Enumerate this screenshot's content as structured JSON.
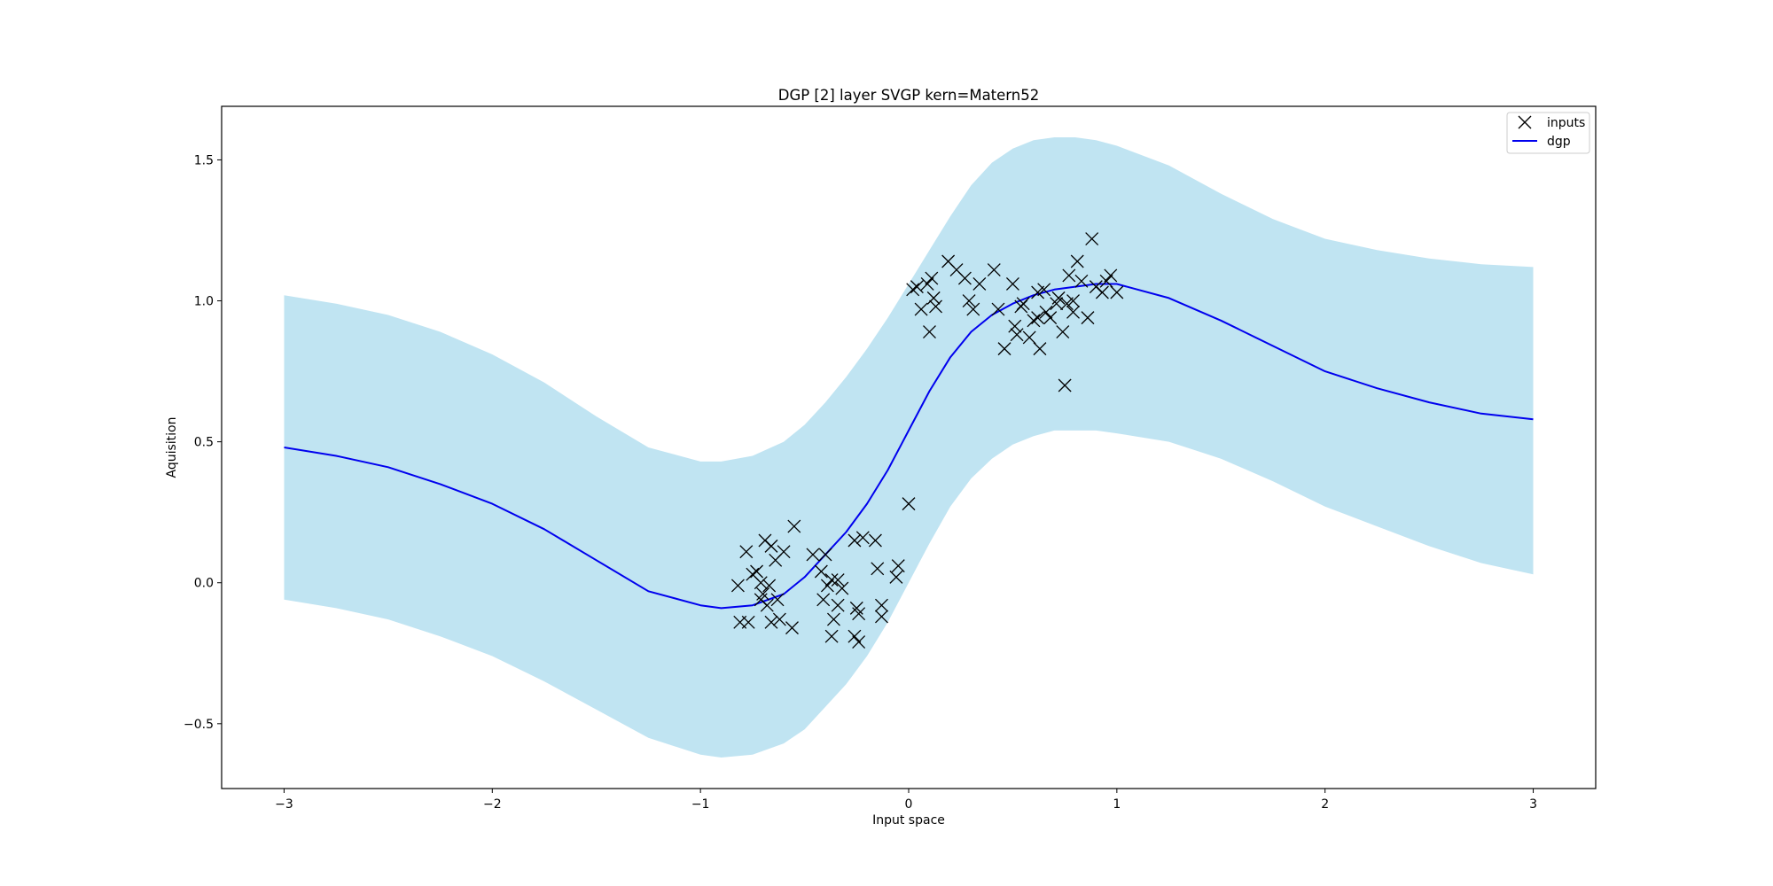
{
  "chart_data": {
    "type": "line",
    "title": "DGP [2] layer SVGP kern=Matern52",
    "xlabel": "Input space",
    "ylabel": "Aquisition",
    "xlim": [
      -3.3,
      3.3
    ],
    "ylim": [
      -0.73,
      1.69
    ],
    "xticks": [
      -3,
      -2,
      -1,
      0,
      1,
      2,
      3
    ],
    "yticks": [
      -0.5,
      0.0,
      0.5,
      1.0,
      1.5
    ],
    "xtick_labels": [
      "−3",
      "−2",
      "−1",
      "0",
      "1",
      "2",
      "3"
    ],
    "ytick_labels": [
      "−0.5",
      "0.0",
      "0.5",
      "1.0",
      "1.5"
    ],
    "grid": false,
    "legend": {
      "position": "top-right",
      "entries": [
        {
          "label": "inputs",
          "marker": "x",
          "color": "#000000"
        },
        {
          "label": "dgp",
          "marker": "line",
          "color": "#0000ee"
        }
      ]
    },
    "colors": {
      "mean": "#0000ee",
      "band": "#c0e4f2",
      "markers": "#000000"
    },
    "series": [
      {
        "name": "dgp",
        "kind": "line",
        "x": [
          -3.0,
          -2.75,
          -2.5,
          -2.25,
          -2.0,
          -1.75,
          -1.5,
          -1.25,
          -1.0,
          -0.9,
          -0.75,
          -0.6,
          -0.5,
          -0.4,
          -0.3,
          -0.2,
          -0.1,
          0.0,
          0.1,
          0.2,
          0.3,
          0.4,
          0.5,
          0.6,
          0.7,
          0.8,
          0.9,
          1.0,
          1.25,
          1.5,
          1.75,
          2.0,
          2.25,
          2.5,
          2.75,
          3.0
        ],
        "y": [
          0.48,
          0.45,
          0.41,
          0.35,
          0.28,
          0.19,
          0.08,
          -0.03,
          -0.08,
          -0.09,
          -0.08,
          -0.04,
          0.02,
          0.1,
          0.18,
          0.28,
          0.4,
          0.54,
          0.68,
          0.8,
          0.89,
          0.95,
          0.99,
          1.02,
          1.04,
          1.05,
          1.06,
          1.06,
          1.01,
          0.93,
          0.84,
          0.75,
          0.69,
          0.64,
          0.6,
          0.58
        ]
      },
      {
        "name": "",
        "kind": "band",
        "x": [
          -3.0,
          -2.75,
          -2.5,
          -2.25,
          -2.0,
          -1.75,
          -1.5,
          -1.25,
          -1.0,
          -0.9,
          -0.75,
          -0.6,
          -0.5,
          -0.4,
          -0.3,
          -0.2,
          -0.1,
          0.0,
          0.1,
          0.2,
          0.3,
          0.4,
          0.5,
          0.6,
          0.7,
          0.8,
          0.9,
          1.0,
          1.25,
          1.5,
          1.75,
          2.0,
          2.25,
          2.5,
          2.75,
          3.0
        ],
        "upper": [
          1.02,
          0.99,
          0.95,
          0.89,
          0.81,
          0.71,
          0.59,
          0.48,
          0.43,
          0.43,
          0.45,
          0.5,
          0.56,
          0.64,
          0.73,
          0.83,
          0.94,
          1.06,
          1.18,
          1.3,
          1.41,
          1.49,
          1.54,
          1.57,
          1.58,
          1.58,
          1.57,
          1.55,
          1.48,
          1.38,
          1.29,
          1.22,
          1.18,
          1.15,
          1.13,
          1.12
        ],
        "lower": [
          -0.06,
          -0.09,
          -0.13,
          -0.19,
          -0.26,
          -0.35,
          -0.45,
          -0.55,
          -0.61,
          -0.62,
          -0.61,
          -0.57,
          -0.52,
          -0.44,
          -0.36,
          -0.26,
          -0.14,
          0.0,
          0.14,
          0.27,
          0.37,
          0.44,
          0.49,
          0.52,
          0.54,
          0.54,
          0.54,
          0.53,
          0.5,
          0.44,
          0.36,
          0.27,
          0.2,
          0.13,
          0.07,
          0.03
        ]
      },
      {
        "name": "inputs",
        "kind": "scatter",
        "points": [
          [
            -0.82,
            -0.01
          ],
          [
            -0.81,
            -0.14
          ],
          [
            -0.78,
            0.11
          ],
          [
            -0.77,
            -0.14
          ],
          [
            -0.75,
            0.03
          ],
          [
            -0.73,
            0.04
          ],
          [
            -0.71,
            0.0
          ],
          [
            -0.71,
            -0.06
          ],
          [
            -0.7,
            -0.04
          ],
          [
            -0.69,
            0.15
          ],
          [
            -0.68,
            -0.08
          ],
          [
            -0.67,
            -0.01
          ],
          [
            -0.66,
            0.13
          ],
          [
            -0.66,
            -0.14
          ],
          [
            -0.64,
            0.08
          ],
          [
            -0.63,
            -0.06
          ],
          [
            -0.62,
            -0.13
          ],
          [
            -0.6,
            0.11
          ],
          [
            -0.56,
            -0.16
          ],
          [
            -0.55,
            0.2
          ],
          [
            -0.46,
            0.1
          ],
          [
            -0.42,
            0.04
          ],
          [
            -0.41,
            -0.06
          ],
          [
            -0.4,
            0.1
          ],
          [
            -0.39,
            -0.01
          ],
          [
            -0.37,
            0.01
          ],
          [
            -0.37,
            -0.19
          ],
          [
            -0.36,
            -0.13
          ],
          [
            -0.34,
            0.01
          ],
          [
            -0.34,
            -0.08
          ],
          [
            -0.32,
            -0.02
          ],
          [
            -0.26,
            0.15
          ],
          [
            -0.26,
            -0.19
          ],
          [
            -0.25,
            -0.09
          ],
          [
            -0.24,
            -0.21
          ],
          [
            -0.24,
            -0.11
          ],
          [
            -0.22,
            0.16
          ],
          [
            -0.16,
            0.15
          ],
          [
            -0.15,
            0.05
          ],
          [
            -0.13,
            -0.08
          ],
          [
            -0.13,
            -0.12
          ],
          [
            -0.06,
            0.02
          ],
          [
            -0.05,
            0.06
          ],
          [
            0.0,
            0.28
          ],
          [
            0.02,
            1.04
          ],
          [
            0.04,
            1.05
          ],
          [
            0.06,
            0.97
          ],
          [
            0.09,
            1.06
          ],
          [
            0.1,
            0.89
          ],
          [
            0.11,
            1.08
          ],
          [
            0.12,
            1.01
          ],
          [
            0.13,
            0.98
          ],
          [
            0.19,
            1.14
          ],
          [
            0.23,
            1.11
          ],
          [
            0.27,
            1.08
          ],
          [
            0.29,
            1.0
          ],
          [
            0.31,
            0.97
          ],
          [
            0.34,
            1.06
          ],
          [
            0.41,
            1.11
          ],
          [
            0.43,
            0.97
          ],
          [
            0.46,
            0.83
          ],
          [
            0.5,
            1.06
          ],
          [
            0.51,
            0.91
          ],
          [
            0.52,
            0.88
          ],
          [
            0.54,
            0.98
          ],
          [
            0.55,
            0.99
          ],
          [
            0.58,
            0.87
          ],
          [
            0.6,
            0.93
          ],
          [
            0.62,
            0.94
          ],
          [
            0.62,
            1.03
          ],
          [
            0.63,
            0.83
          ],
          [
            0.65,
            1.04
          ],
          [
            0.66,
            0.96
          ],
          [
            0.68,
            0.94
          ],
          [
            0.71,
            0.99
          ],
          [
            0.72,
            1.01
          ],
          [
            0.74,
            0.89
          ],
          [
            0.75,
            0.7
          ],
          [
            0.76,
            0.99
          ],
          [
            0.77,
            1.09
          ],
          [
            0.79,
            0.96
          ],
          [
            0.79,
            1.0
          ],
          [
            0.81,
            1.14
          ],
          [
            0.83,
            1.07
          ],
          [
            0.86,
            0.94
          ],
          [
            0.88,
            1.22
          ],
          [
            0.9,
            1.05
          ],
          [
            0.93,
            1.03
          ],
          [
            0.95,
            1.07
          ],
          [
            0.97,
            1.09
          ],
          [
            1.0,
            1.03
          ]
        ]
      }
    ]
  }
}
